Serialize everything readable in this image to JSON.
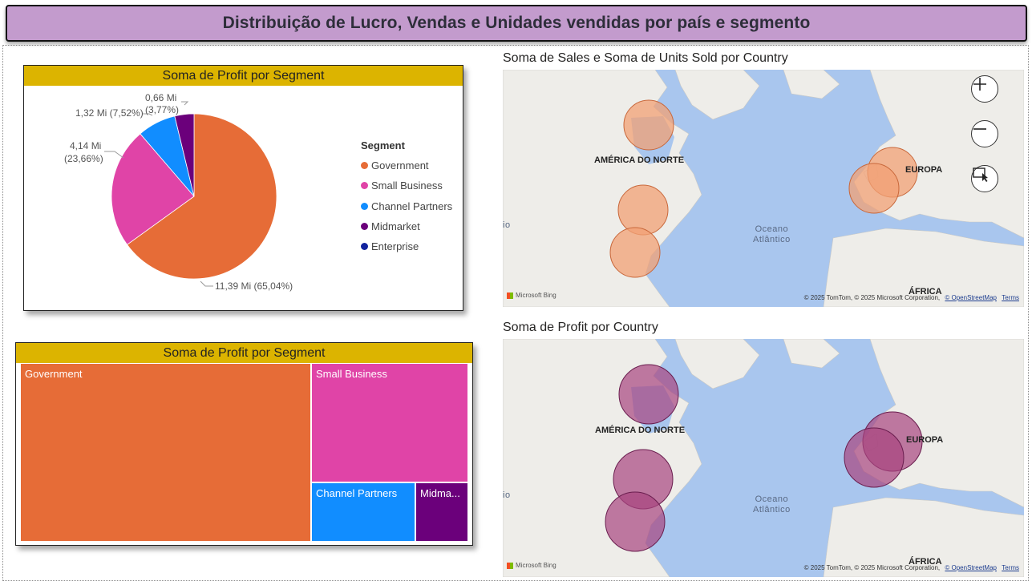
{
  "header": {
    "title": "Distribuição de Lucro, Vendas e Unidades vendidas por país e segmento"
  },
  "pie": {
    "title": "Soma de Profit por Segment",
    "legend_title": "Segment",
    "labels": [
      {
        "text": "11,39 Mi (65,04%)"
      },
      {
        "text": "4,14 Mi"
      },
      {
        "text": "(23,66%)"
      },
      {
        "text": "1,32 Mi (7,52%)"
      },
      {
        "text": "0,66 Mi"
      },
      {
        "text": "(3,77%)"
      }
    ]
  },
  "segments": [
    {
      "name": "Government",
      "color": "#e66c37",
      "value": 11.39,
      "percent": 65.04
    },
    {
      "name": "Small Business",
      "color": "#e044a7",
      "value": 4.14,
      "percent": 23.66
    },
    {
      "name": "Channel Partners",
      "color": "#118dff",
      "value": 1.32,
      "percent": 7.52
    },
    {
      "name": "Midmarket",
      "color": "#6b007b",
      "value": 0.66,
      "percent": 3.77
    },
    {
      "name": "Enterprise",
      "color": "#12239e",
      "value": 0.0,
      "percent": 0.0
    }
  ],
  "treemap": {
    "title": "Soma de Profit por Segment",
    "tiles": [
      {
        "label": "Government",
        "color": "#e66c37"
      },
      {
        "label": "Small Business",
        "color": "#e044a7"
      },
      {
        "label": "Channel Partners",
        "color": "#118dff"
      },
      {
        "label": "Midma...",
        "color": "#6b007b"
      }
    ]
  },
  "map1": {
    "title": "Soma de Sales e Soma de Units Sold por Country",
    "bubble_color": "#f2a074",
    "bubble_stroke": "#c8673a"
  },
  "map2": {
    "title": "Soma de Profit por Country",
    "bubble_color": "#a8447f",
    "bubble_stroke": "#6a1e4f"
  },
  "map_common": {
    "north_america": "AMÉRICA DO NORTE",
    "europe": "EUROPA",
    "africa": "ÁFRICA",
    "ocean_line1": "Oceano",
    "ocean_line2": "Atlântico",
    "edge_text": "io",
    "bing": "Microsoft Bing",
    "copyright": "© 2025 TomTom, © 2025 Microsoft Corporation,",
    "osm": "© OpenStreetMap",
    "terms": "Terms"
  },
  "map_controls": {
    "zoom_in": "+",
    "zoom_out": "−"
  },
  "colors": {
    "title_bg": "#c39bcd",
    "card_header": "#dcb400",
    "water": "#a9c6ee",
    "land": "#eeede9"
  },
  "icons": [
    "plus-icon",
    "minus-icon",
    "lasso-select-icon"
  ]
}
